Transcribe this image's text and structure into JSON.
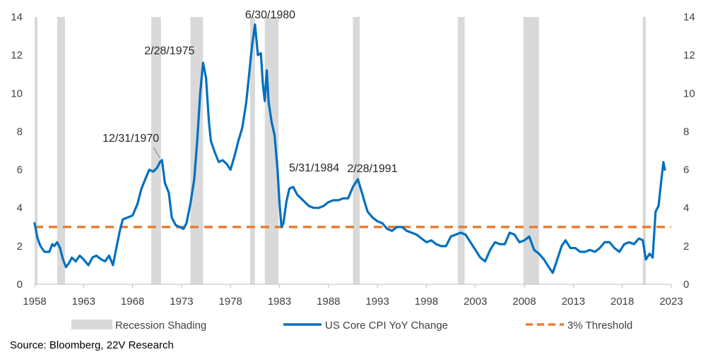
{
  "chart_data": {
    "type": "line",
    "title": "",
    "xlabel": "",
    "ylabel": "",
    "xlim": [
      1958.0,
      2023.0
    ],
    "ylim": [
      0,
      14
    ],
    "x_ticks": [
      "1958",
      "1963",
      "1968",
      "1973",
      "1978",
      "1983",
      "1988",
      "1993",
      "1998",
      "2003",
      "2008",
      "2013",
      "2018",
      "2023"
    ],
    "y_ticks_left": [
      "0",
      "2",
      "4",
      "6",
      "8",
      "10",
      "12",
      "14"
    ],
    "y_ticks_right": [
      "0",
      "2",
      "4",
      "6",
      "8",
      "10",
      "12",
      "14"
    ],
    "grid": false,
    "legend_position": "bottom",
    "recession_shading": {
      "name": "Recession Shading",
      "color": "#d9d9d9",
      "periods": [
        [
          1958.0,
          1958.3
        ],
        [
          1960.3,
          1961.1
        ],
        [
          1969.9,
          1970.9
        ],
        [
          1973.9,
          1975.2
        ],
        [
          1980.0,
          1980.5
        ],
        [
          1981.5,
          1982.9
        ],
        [
          1990.5,
          1991.2
        ],
        [
          2001.2,
          2001.9
        ],
        [
          2007.9,
          2009.5
        ],
        [
          2020.1,
          2020.4
        ]
      ]
    },
    "series": [
      {
        "name": "US Core CPI YoY Change",
        "color": "#0070c0",
        "points": [
          [
            1958.0,
            3.2
          ],
          [
            1958.3,
            2.4
          ],
          [
            1958.6,
            2.0
          ],
          [
            1959.0,
            1.7
          ],
          [
            1959.5,
            1.7
          ],
          [
            1959.8,
            2.1
          ],
          [
            1960.0,
            2.0
          ],
          [
            1960.3,
            2.2
          ],
          [
            1960.6,
            1.9
          ],
          [
            1960.9,
            1.3
          ],
          [
            1961.2,
            0.9
          ],
          [
            1961.5,
            1.1
          ],
          [
            1961.8,
            1.4
          ],
          [
            1962.2,
            1.2
          ],
          [
            1962.6,
            1.5
          ],
          [
            1963.0,
            1.3
          ],
          [
            1963.5,
            1.0
          ],
          [
            1963.9,
            1.4
          ],
          [
            1964.3,
            1.5
          ],
          [
            1964.8,
            1.3
          ],
          [
            1965.2,
            1.2
          ],
          [
            1965.6,
            1.5
          ],
          [
            1966.0,
            1.0
          ],
          [
            1966.3,
            1.8
          ],
          [
            1966.7,
            2.8
          ],
          [
            1967.0,
            3.4
          ],
          [
            1967.5,
            3.5
          ],
          [
            1968.0,
            3.6
          ],
          [
            1968.5,
            4.2
          ],
          [
            1968.9,
            5.0
          ],
          [
            1969.3,
            5.5
          ],
          [
            1969.7,
            6.0
          ],
          [
            1970.1,
            5.9
          ],
          [
            1970.5,
            6.1
          ],
          [
            1970.8,
            6.4
          ],
          [
            1971.0,
            6.5
          ],
          [
            1971.3,
            5.3
          ],
          [
            1971.7,
            4.8
          ],
          [
            1972.0,
            3.5
          ],
          [
            1972.4,
            3.1
          ],
          [
            1972.8,
            3.0
          ],
          [
            1973.2,
            2.9
          ],
          [
            1973.5,
            3.2
          ],
          [
            1973.9,
            4.2
          ],
          [
            1974.3,
            5.5
          ],
          [
            1974.6,
            7.5
          ],
          [
            1974.9,
            10.0
          ],
          [
            1975.2,
            11.6
          ],
          [
            1975.5,
            10.8
          ],
          [
            1975.8,
            8.5
          ],
          [
            1976.0,
            7.5
          ],
          [
            1976.4,
            6.9
          ],
          [
            1976.8,
            6.4
          ],
          [
            1977.2,
            6.5
          ],
          [
            1977.6,
            6.3
          ],
          [
            1978.0,
            6.0
          ],
          [
            1978.4,
            6.7
          ],
          [
            1978.8,
            7.5
          ],
          [
            1979.2,
            8.2
          ],
          [
            1979.6,
            9.5
          ],
          [
            1979.9,
            11.0
          ],
          [
            1980.2,
            12.5
          ],
          [
            1980.5,
            13.6
          ],
          [
            1980.8,
            12.0
          ],
          [
            1981.1,
            12.1
          ],
          [
            1981.3,
            10.5
          ],
          [
            1981.5,
            9.6
          ],
          [
            1981.7,
            11.2
          ],
          [
            1981.9,
            9.5
          ],
          [
            1982.2,
            8.5
          ],
          [
            1982.5,
            7.8
          ],
          [
            1982.8,
            6.0
          ],
          [
            1983.0,
            4.3
          ],
          [
            1983.2,
            3.0
          ],
          [
            1983.4,
            3.2
          ],
          [
            1983.7,
            4.3
          ],
          [
            1984.0,
            5.0
          ],
          [
            1984.4,
            5.1
          ],
          [
            1984.8,
            4.7
          ],
          [
            1985.2,
            4.5
          ],
          [
            1985.6,
            4.3
          ],
          [
            1986.0,
            4.1
          ],
          [
            1986.5,
            4.0
          ],
          [
            1987.0,
            4.0
          ],
          [
            1987.5,
            4.1
          ],
          [
            1988.0,
            4.3
          ],
          [
            1988.5,
            4.4
          ],
          [
            1989.0,
            4.4
          ],
          [
            1989.5,
            4.5
          ],
          [
            1990.0,
            4.5
          ],
          [
            1990.5,
            5.1
          ],
          [
            1991.0,
            5.5
          ],
          [
            1991.3,
            5.0
          ],
          [
            1991.7,
            4.3
          ],
          [
            1992.0,
            3.8
          ],
          [
            1992.5,
            3.5
          ],
          [
            1993.0,
            3.3
          ],
          [
            1993.5,
            3.2
          ],
          [
            1994.0,
            2.9
          ],
          [
            1994.5,
            2.8
          ],
          [
            1995.0,
            3.0
          ],
          [
            1995.5,
            3.0
          ],
          [
            1996.0,
            2.8
          ],
          [
            1996.5,
            2.7
          ],
          [
            1997.0,
            2.6
          ],
          [
            1997.5,
            2.4
          ],
          [
            1998.0,
            2.2
          ],
          [
            1998.5,
            2.3
          ],
          [
            1999.0,
            2.1
          ],
          [
            1999.5,
            2.0
          ],
          [
            2000.0,
            2.0
          ],
          [
            2000.5,
            2.5
          ],
          [
            2001.0,
            2.6
          ],
          [
            2001.5,
            2.7
          ],
          [
            2002.0,
            2.6
          ],
          [
            2002.5,
            2.2
          ],
          [
            2003.0,
            1.8
          ],
          [
            2003.5,
            1.4
          ],
          [
            2004.0,
            1.2
          ],
          [
            2004.5,
            1.8
          ],
          [
            2005.0,
            2.2
          ],
          [
            2005.5,
            2.1
          ],
          [
            2006.0,
            2.1
          ],
          [
            2006.5,
            2.7
          ],
          [
            2007.0,
            2.6
          ],
          [
            2007.5,
            2.2
          ],
          [
            2008.0,
            2.3
          ],
          [
            2008.5,
            2.5
          ],
          [
            2009.0,
            1.8
          ],
          [
            2009.5,
            1.6
          ],
          [
            2010.0,
            1.3
          ],
          [
            2010.5,
            0.9
          ],
          [
            2010.9,
            0.6
          ],
          [
            2011.3,
            1.2
          ],
          [
            2011.8,
            2.0
          ],
          [
            2012.2,
            2.3
          ],
          [
            2012.7,
            1.9
          ],
          [
            2013.2,
            1.9
          ],
          [
            2013.7,
            1.7
          ],
          [
            2014.2,
            1.7
          ],
          [
            2014.7,
            1.8
          ],
          [
            2015.2,
            1.7
          ],
          [
            2015.7,
            1.9
          ],
          [
            2016.2,
            2.2
          ],
          [
            2016.7,
            2.2
          ],
          [
            2017.2,
            1.9
          ],
          [
            2017.7,
            1.7
          ],
          [
            2018.2,
            2.1
          ],
          [
            2018.7,
            2.2
          ],
          [
            2019.2,
            2.1
          ],
          [
            2019.7,
            2.4
          ],
          [
            2020.1,
            2.3
          ],
          [
            2020.4,
            1.3
          ],
          [
            2020.8,
            1.6
          ],
          [
            2021.1,
            1.4
          ],
          [
            2021.4,
            3.8
          ],
          [
            2021.7,
            4.1
          ],
          [
            2022.0,
            5.5
          ],
          [
            2022.2,
            6.4
          ],
          [
            2022.35,
            6.0
          ]
        ]
      },
      {
        "name": "3% Threshold",
        "color": "#ed7d31",
        "style": "dashed",
        "y": 3
      }
    ],
    "annotations": [
      {
        "text": "12/31/1970",
        "x": 1971.0,
        "y": 6.5
      },
      {
        "text": "2/28/1975",
        "x": 1975.2,
        "y": 11.6
      },
      {
        "text": "6/30/1980",
        "x": 1980.5,
        "y": 13.6
      },
      {
        "text": "5/31/1984",
        "x": 1984.4,
        "y": 5.1
      },
      {
        "text": "2/28/1991",
        "x": 1991.0,
        "y": 5.5
      }
    ],
    "legend": [
      "Recession Shading",
      "US Core CPI YoY Change",
      "3% Threshold"
    ],
    "source": "Source: Bloomberg, 22V Research"
  }
}
